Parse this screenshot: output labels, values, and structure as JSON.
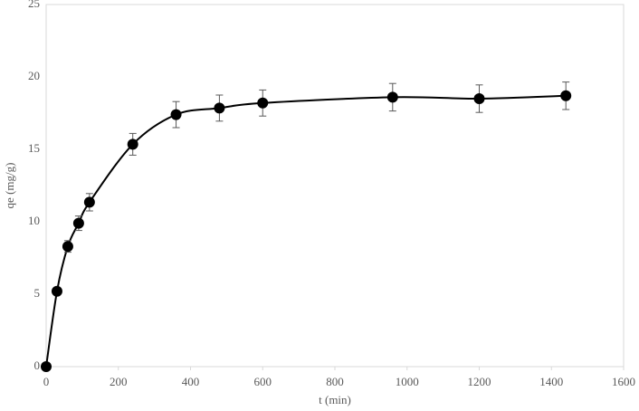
{
  "chart_data": {
    "type": "scatter",
    "xlabel": "t (min)",
    "ylabel": "qe (mg/g)",
    "x": [
      0,
      30,
      60,
      90,
      120,
      240,
      360,
      480,
      600,
      960,
      1200,
      1440
    ],
    "values": [
      0,
      5.2,
      8.3,
      9.9,
      11.35,
      15.35,
      17.4,
      17.85,
      18.2,
      18.6,
      18.5,
      18.7
    ],
    "errors": [
      0,
      0.2,
      0.4,
      0.5,
      0.6,
      0.75,
      0.9,
      0.9,
      0.9,
      0.95,
      0.95,
      0.95
    ],
    "color": "#000000",
    "xlim": [
      0,
      1600
    ],
    "xticks": [
      0,
      200,
      400,
      600,
      800,
      1000,
      1200,
      1400,
      1600
    ],
    "ylim": [
      0,
      25
    ],
    "yticks": [
      0,
      5,
      10,
      15,
      20,
      25
    ],
    "grid": false,
    "smooth_line": true
  }
}
